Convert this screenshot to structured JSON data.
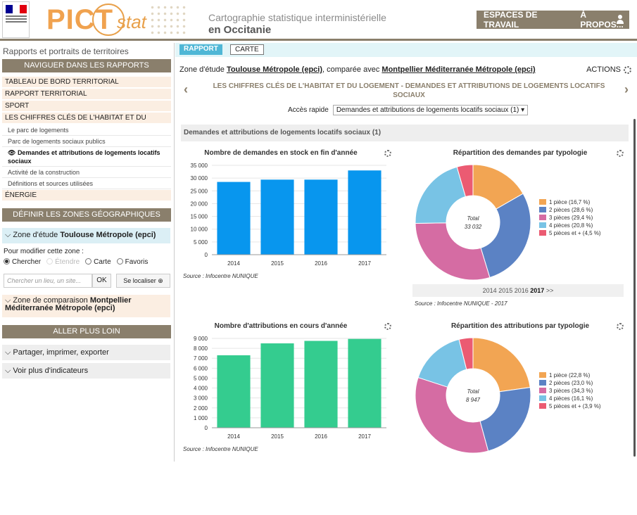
{
  "header": {
    "logo_word": "PICT",
    "logo_suffix": "stat",
    "subtitle_line1": "Cartographie statistique interministérielle",
    "subtitle_line2": "en Occitanie",
    "nav_workspaces": "ESPACES DE TRAVAIL",
    "nav_about": "À PROPOS...",
    "user_icon": "user-icon"
  },
  "sidebar": {
    "title": "Rapports et portraits de territoires",
    "nav_heading": "NAVIGUER DANS LES RAPPORTS",
    "menu": [
      {
        "label": "TABLEAU DE BORD TERRITORIAL"
      },
      {
        "label": "RAPPORT TERRITORIAL"
      },
      {
        "label": "SPORT"
      },
      {
        "label": "LES CHIFFRES CLÉS DE L'HABITAT ET DU LOGEMENT"
      }
    ],
    "submenu": [
      {
        "label": "Le parc de logements"
      },
      {
        "label": "Parc de logements sociaux publics"
      },
      {
        "label": "Demandes et attributions de logements locatifs sociaux"
      },
      {
        "label": "Activité de la construction"
      },
      {
        "label": "Définitions et sources utilisées"
      }
    ],
    "energie": "ÉNERGIE",
    "zones_heading": "DÉFINIR LES ZONES GÉOGRAPHIQUES",
    "zone_etude_label": "Zone d'étude",
    "zone_etude_value": "Toulouse Métropole (epci)",
    "modify_label": "Pour modifier cette zone :",
    "radios": [
      "Chercher",
      "Étendre",
      "Carte",
      "Favoris"
    ],
    "search_placeholder": "Chercher un lieu, un site...",
    "ok_label": "OK",
    "locate_label": "Se localiser ⊕",
    "zone_comp_label": "Zone de comparaison",
    "zone_comp_value": "Montpellier Méditerranée Métropole (epci)",
    "further_heading": "ALLER PLUS LOIN",
    "accordion1": "Partager, imprimer, exporter",
    "accordion2": "Voir plus d'indicateurs"
  },
  "main": {
    "tab_report": "RAPPORT",
    "tab_map": "CARTE",
    "zone_prefix": "Zone d'étude",
    "zone_value": "Toulouse Métropole (epci)",
    "compare_text": ", comparée avec",
    "compare_value": "Montpellier Méditerranée Métropole (epci)",
    "actions": "ACTIONS",
    "report_title": "LES CHIFFRES CLÉS DE L'HABITAT ET DU LOGEMENT - DEMANDES ET ATTRIBUTIONS DE LOGEMENTS LOCATIFS SOCIAUX",
    "quick_access_label": "Accès rapide",
    "quick_access_value": "Demandes et attributions de logements locatifs sociaux (1)",
    "section_title": "Demandes et attributions de logements locatifs sociaux (1)",
    "years_nav": [
      "2014",
      "2015",
      "2016",
      "2017",
      ">>"
    ],
    "source1": "Source : Infocentre NUNIQUE",
    "source2": "Source : Infocentre NUNIQUE - 2017",
    "source3": "Source : Infocentre NUNIQUE"
  },
  "colors": {
    "brown": "#8a7f6c",
    "bar_blue": "#0896ee",
    "bar_green": "#34cc8f",
    "pie": [
      "#f2a553",
      "#5b82c4",
      "#d56ca3",
      "#78c3e5",
      "#eb5b72"
    ]
  },
  "chart_data": [
    {
      "type": "bar",
      "title": "Nombre de demandes en stock en fin d'année",
      "categories": [
        "2014",
        "2015",
        "2016",
        "2017"
      ],
      "values": [
        28500,
        29400,
        29400,
        33000
      ],
      "ylim": [
        0,
        35000
      ],
      "yticks": [
        "0",
        "5 000",
        "10 000",
        "15 000",
        "20 000",
        "25 000",
        "30 000",
        "35 000"
      ],
      "ytick_values": [
        0,
        5000,
        10000,
        15000,
        20000,
        25000,
        30000,
        35000
      ]
    },
    {
      "type": "pie",
      "title": "Répartition des demandes par typologie",
      "center_label": "Total",
      "center_value": "33 032",
      "slices": [
        {
          "name": "1 pièce (16,7 %)",
          "value": 16.7
        },
        {
          "name": "2 pièces (28,6 %)",
          "value": 28.6
        },
        {
          "name": "3 pièces (29,4 %)",
          "value": 29.4
        },
        {
          "name": "4 pièces (20,8 %)",
          "value": 20.8
        },
        {
          "name": "5 pièces et + (4,5 %)",
          "value": 4.5
        }
      ]
    },
    {
      "type": "bar",
      "title": "Nombre d'attributions en cours d'année",
      "categories": [
        "2014",
        "2015",
        "2016",
        "2017"
      ],
      "values": [
        7300,
        8500,
        8750,
        8950
      ],
      "ylim": [
        0,
        9000
      ],
      "yticks": [
        "0",
        "1 000",
        "2 000",
        "3 000",
        "4 000",
        "5 000",
        "6 000",
        "7 000",
        "8 000",
        "9 000"
      ],
      "ytick_values": [
        0,
        1000,
        2000,
        3000,
        4000,
        5000,
        6000,
        7000,
        8000,
        9000
      ]
    },
    {
      "type": "pie",
      "title": "Répartition des attributions par typologie",
      "center_label": "Total",
      "center_value": "8 947",
      "slices": [
        {
          "name": "1 pièce (22,8 %)",
          "value": 22.8
        },
        {
          "name": "2 pièces (23,0 %)",
          "value": 23.0
        },
        {
          "name": "3 pièces (34,3 %)",
          "value": 34.3
        },
        {
          "name": "4 pièces (16,1 %)",
          "value": 16.1
        },
        {
          "name": "5 pièces et + (3,9 %)",
          "value": 3.9
        }
      ]
    }
  ]
}
